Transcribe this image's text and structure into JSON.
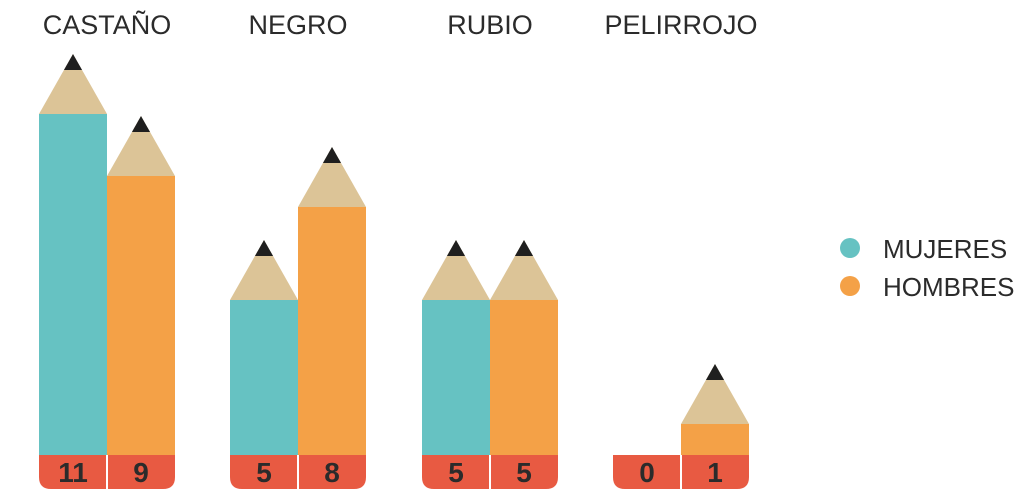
{
  "chart_data": {
    "type": "bar",
    "categories": [
      "CASTAÑO",
      "NEGRO",
      "RUBIO",
      "PELIRROJO"
    ],
    "series": [
      {
        "name": "MUJERES",
        "values": [
          11,
          5,
          5,
          0
        ],
        "color": "#66c2c2"
      },
      {
        "name": "HOMBRES",
        "values": [
          9,
          8,
          5,
          1
        ],
        "color": "#f4a147"
      }
    ],
    "legend_position": "right",
    "grid": false,
    "colors": {
      "eraser": "#e85a42",
      "wood": "#dcc497",
      "lead": "#1f1f1f"
    }
  }
}
